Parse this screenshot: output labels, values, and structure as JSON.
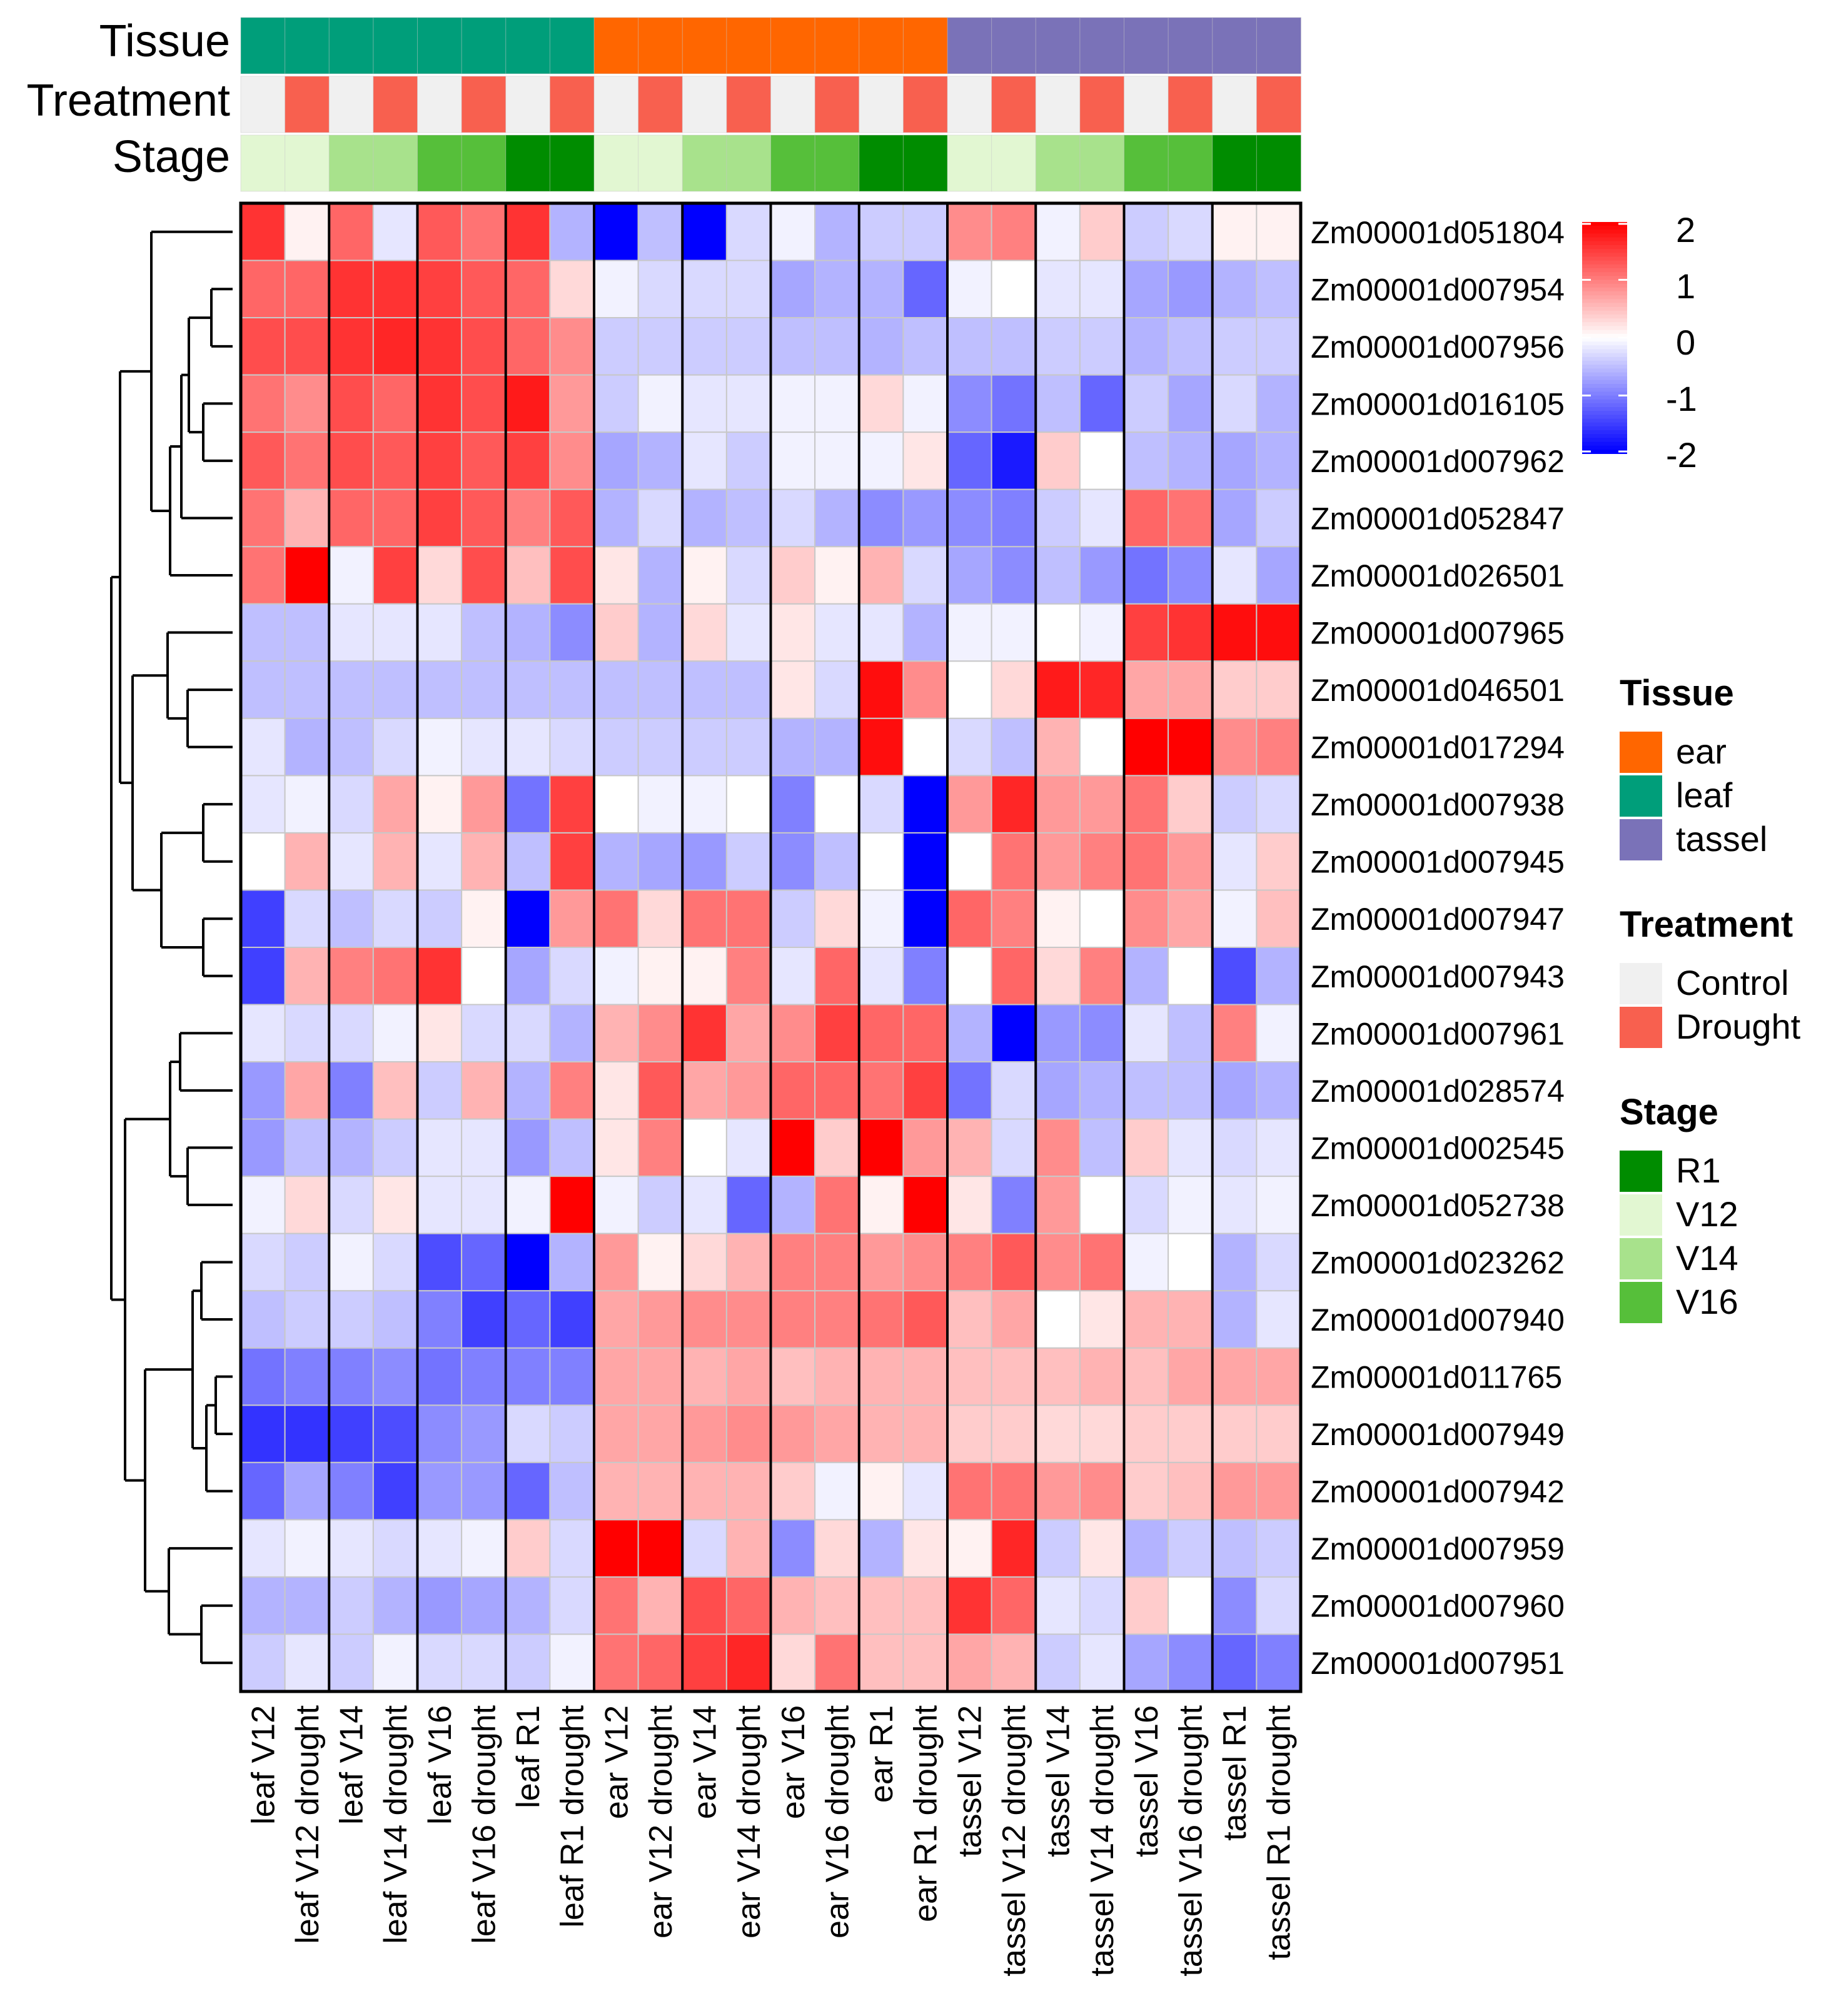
{
  "chart_data": {
    "type": "heatmap",
    "title": "",
    "color_scale": {
      "min": -2,
      "max": 2,
      "ticks": [
        2,
        1,
        0,
        -1,
        -2
      ],
      "low_color": "#0000ff",
      "mid_color": "#ffffff",
      "high_color": "#ff0000"
    },
    "columns": [
      "leaf V12",
      "leaf V12 drought",
      "leaf V14",
      "leaf V14 drought",
      "leaf V16",
      "leaf V16 drought",
      "leaf R1",
      "leaf R1 drought",
      "ear V12",
      "ear V12 drought",
      "ear V14",
      "ear V14 drought",
      "ear V16",
      "ear V16 drought",
      "ear R1",
      "ear R1 drought",
      "tassel V12",
      "tassel V12 drought",
      "tassel V14",
      "tassel V14 drought",
      "tassel V16",
      "tassel V16 drought",
      "tassel R1",
      "tassel R1 drought"
    ],
    "rows": [
      "Zm00001d051804",
      "Zm00001d007954",
      "Zm00001d007956",
      "Zm00001d016105",
      "Zm00001d007962",
      "Zm00001d052847",
      "Zm00001d026501",
      "Zm00001d007965",
      "Zm00001d046501",
      "Zm00001d017294",
      "Zm00001d007938",
      "Zm00001d007945",
      "Zm00001d007947",
      "Zm00001d007943",
      "Zm00001d007961",
      "Zm00001d028574",
      "Zm00001d002545",
      "Zm00001d052738",
      "Zm00001d023262",
      "Zm00001d007940",
      "Zm00001d011765",
      "Zm00001d007949",
      "Zm00001d007942",
      "Zm00001d007959",
      "Zm00001d007960",
      "Zm00001d007951"
    ],
    "values": [
      [
        1.6,
        0.1,
        1.2,
        -0.2,
        1.3,
        1.1,
        1.6,
        -0.6,
        -2.0,
        -0.5,
        -2.0,
        -0.3,
        -0.1,
        -0.6,
        -0.4,
        -0.4,
        0.9,
        1.0,
        -0.1,
        0.4,
        -0.4,
        -0.3,
        0.1,
        0.1
      ],
      [
        1.2,
        1.2,
        1.6,
        1.6,
        1.5,
        1.3,
        1.2,
        0.3,
        -0.1,
        -0.3,
        -0.3,
        -0.3,
        -0.7,
        -0.6,
        -0.6,
        -1.2,
        -0.1,
        0.0,
        -0.2,
        -0.2,
        -0.7,
        -0.8,
        -0.6,
        -0.5
      ],
      [
        1.4,
        1.4,
        1.6,
        1.7,
        1.6,
        1.4,
        1.2,
        0.9,
        -0.4,
        -0.4,
        -0.4,
        -0.4,
        -0.5,
        -0.5,
        -0.6,
        -0.5,
        -0.5,
        -0.5,
        -0.4,
        -0.4,
        -0.6,
        -0.5,
        -0.4,
        -0.4
      ],
      [
        1.1,
        0.9,
        1.4,
        1.2,
        1.6,
        1.4,
        1.8,
        0.8,
        -0.4,
        -0.1,
        -0.2,
        -0.2,
        -0.1,
        -0.1,
        0.3,
        -0.1,
        -0.9,
        -1.1,
        -0.5,
        -1.2,
        -0.4,
        -0.7,
        -0.3,
        -0.6
      ],
      [
        1.3,
        1.1,
        1.4,
        1.3,
        1.5,
        1.3,
        1.5,
        0.9,
        -0.7,
        -0.6,
        -0.2,
        -0.4,
        -0.1,
        -0.1,
        -0.1,
        0.2,
        -1.2,
        -1.8,
        0.4,
        0.0,
        -0.5,
        -0.6,
        -0.7,
        -0.6
      ],
      [
        1.1,
        0.6,
        1.2,
        1.2,
        1.5,
        1.3,
        1.0,
        1.3,
        -0.6,
        -0.3,
        -0.6,
        -0.5,
        -0.3,
        -0.6,
        -0.9,
        -0.8,
        -0.9,
        -1.0,
        -0.4,
        -0.2,
        1.2,
        1.1,
        -0.7,
        -0.4
      ],
      [
        1.1,
        2.0,
        -0.1,
        1.5,
        0.3,
        1.4,
        0.5,
        1.4,
        0.2,
        -0.6,
        0.1,
        -0.3,
        0.4,
        0.1,
        0.6,
        -0.3,
        -0.7,
        -0.9,
        -0.5,
        -0.8,
        -1.1,
        -0.9,
        -0.2,
        -0.7
      ],
      [
        -0.5,
        -0.5,
        -0.2,
        -0.2,
        -0.2,
        -0.5,
        -0.6,
        -0.9,
        0.4,
        -0.6,
        0.3,
        -0.2,
        0.2,
        -0.2,
        -0.2,
        -0.6,
        -0.1,
        -0.1,
        0.0,
        -0.1,
        1.5,
        1.6,
        1.9,
        1.9
      ],
      [
        -0.5,
        -0.5,
        -0.5,
        -0.5,
        -0.5,
        -0.5,
        -0.5,
        -0.5,
        -0.5,
        -0.5,
        -0.5,
        -0.5,
        0.2,
        -0.3,
        1.9,
        0.9,
        0.0,
        0.3,
        1.8,
        1.7,
        0.7,
        0.7,
        0.4,
        0.4
      ],
      [
        -0.2,
        -0.6,
        -0.5,
        -0.3,
        -0.1,
        -0.2,
        -0.2,
        -0.3,
        -0.4,
        -0.4,
        -0.4,
        -0.4,
        -0.6,
        -0.6,
        1.9,
        0.0,
        -0.3,
        -0.5,
        0.6,
        0.0,
        2.0,
        2.0,
        0.9,
        1.0
      ],
      [
        -0.2,
        -0.1,
        -0.3,
        0.7,
        0.1,
        0.8,
        -1.1,
        1.5,
        0.0,
        -0.1,
        -0.1,
        0.0,
        -1.0,
        0.0,
        -0.3,
        -2.0,
        0.8,
        1.7,
        0.8,
        0.8,
        1.1,
        0.4,
        -0.4,
        -0.3
      ],
      [
        0.0,
        0.6,
        -0.2,
        0.6,
        -0.2,
        0.6,
        -0.5,
        1.5,
        -0.6,
        -0.7,
        -0.8,
        -0.4,
        -0.9,
        -0.5,
        0.0,
        -2.0,
        0.0,
        1.1,
        0.8,
        1.0,
        1.1,
        0.8,
        -0.2,
        0.4
      ],
      [
        -1.5,
        -0.3,
        -0.5,
        -0.3,
        -0.4,
        0.1,
        -2.0,
        0.8,
        1.1,
        0.3,
        1.1,
        1.1,
        -0.4,
        0.3,
        -0.1,
        -2.0,
        1.2,
        1.0,
        0.1,
        0.0,
        0.9,
        0.7,
        -0.1,
        0.5
      ],
      [
        -1.5,
        0.6,
        1.0,
        1.1,
        1.6,
        0.0,
        -0.7,
        -0.3,
        -0.1,
        0.1,
        0.1,
        1.0,
        -0.2,
        1.2,
        -0.2,
        -1.0,
        0.0,
        1.2,
        0.3,
        1.0,
        -0.6,
        0.0,
        -1.4,
        -0.6
      ],
      [
        -0.2,
        -0.3,
        -0.3,
        -0.1,
        0.2,
        -0.3,
        -0.3,
        -0.6,
        0.6,
        0.9,
        1.6,
        0.7,
        0.9,
        1.5,
        1.2,
        1.2,
        -0.6,
        -2.0,
        -0.8,
        -0.9,
        -0.2,
        -0.5,
        1.0,
        -0.1
      ],
      [
        -0.8,
        0.7,
        -1.0,
        0.5,
        -0.4,
        0.6,
        -0.6,
        1.0,
        0.2,
        1.3,
        0.7,
        0.8,
        1.2,
        1.2,
        1.1,
        1.5,
        -1.1,
        -0.3,
        -0.7,
        -0.6,
        -0.5,
        -0.5,
        -0.7,
        -0.6
      ],
      [
        -0.8,
        -0.5,
        -0.6,
        -0.4,
        -0.2,
        -0.2,
        -0.8,
        -0.5,
        0.2,
        1.0,
        0.0,
        -0.2,
        2.0,
        0.4,
        2.0,
        0.8,
        0.6,
        -0.3,
        0.9,
        -0.5,
        0.4,
        -0.2,
        -0.3,
        -0.2
      ],
      [
        -0.1,
        0.3,
        -0.3,
        0.2,
        -0.2,
        -0.2,
        -0.1,
        2.0,
        -0.1,
        -0.4,
        -0.2,
        -1.2,
        -0.6,
        1.1,
        0.1,
        2.0,
        0.2,
        -1.0,
        0.8,
        0.0,
        -0.3,
        -0.1,
        -0.2,
        -0.1
      ],
      [
        -0.3,
        -0.4,
        -0.1,
        -0.3,
        -1.4,
        -1.2,
        -2.0,
        -0.6,
        0.8,
        0.1,
        0.3,
        0.6,
        1.0,
        1.0,
        0.8,
        0.9,
        1.0,
        1.3,
        0.9,
        1.1,
        -0.1,
        0.0,
        -0.6,
        -0.3
      ],
      [
        -0.5,
        -0.4,
        -0.4,
        -0.5,
        -1.0,
        -1.5,
        -1.2,
        -1.5,
        0.7,
        0.8,
        0.9,
        0.9,
        1.0,
        1.0,
        1.1,
        1.3,
        0.5,
        0.7,
        0.0,
        0.2,
        0.6,
        0.6,
        -0.6,
        -0.2
      ],
      [
        -1.1,
        -1.0,
        -1.0,
        -0.9,
        -1.1,
        -1.0,
        -1.0,
        -1.0,
        0.7,
        0.7,
        0.6,
        0.7,
        0.5,
        0.6,
        0.6,
        0.6,
        0.5,
        0.5,
        0.5,
        0.6,
        0.5,
        0.7,
        0.7,
        0.7
      ],
      [
        -1.6,
        -1.6,
        -1.5,
        -1.4,
        -0.9,
        -0.8,
        -0.3,
        -0.4,
        0.7,
        0.7,
        0.8,
        0.9,
        0.8,
        0.7,
        0.6,
        0.6,
        0.4,
        0.4,
        0.3,
        0.3,
        0.4,
        0.4,
        0.4,
        0.4
      ],
      [
        -1.2,
        -0.7,
        -1.0,
        -1.5,
        -0.8,
        -0.8,
        -1.2,
        -0.5,
        0.6,
        0.6,
        0.6,
        0.6,
        0.4,
        -0.1,
        0.1,
        -0.2,
        1.1,
        1.1,
        0.8,
        0.9,
        0.4,
        0.5,
        0.8,
        0.8
      ],
      [
        -0.2,
        -0.1,
        -0.2,
        -0.3,
        -0.2,
        -0.1,
        0.4,
        -0.3,
        2.0,
        2.0,
        -0.3,
        0.6,
        -0.9,
        0.3,
        -0.6,
        0.2,
        0.1,
        1.7,
        -0.4,
        0.2,
        -0.6,
        -0.4,
        -0.5,
        -0.4
      ],
      [
        -0.6,
        -0.6,
        -0.4,
        -0.6,
        -0.8,
        -0.7,
        -0.6,
        -0.3,
        1.1,
        0.6,
        1.4,
        1.2,
        0.6,
        0.5,
        0.5,
        0.5,
        1.6,
        1.2,
        -0.2,
        -0.3,
        0.4,
        0.0,
        -0.9,
        -0.3
      ],
      [
        -0.4,
        -0.2,
        -0.4,
        -0.1,
        -0.3,
        -0.3,
        -0.4,
        -0.1,
        1.1,
        1.2,
        1.5,
        1.7,
        0.3,
        1.1,
        0.5,
        0.5,
        0.7,
        0.6,
        -0.4,
        -0.2,
        -0.7,
        -0.9,
        -1.2,
        -1.0
      ]
    ],
    "column_annotations": {
      "Tissue": [
        "leaf",
        "leaf",
        "leaf",
        "leaf",
        "leaf",
        "leaf",
        "leaf",
        "leaf",
        "ear",
        "ear",
        "ear",
        "ear",
        "ear",
        "ear",
        "ear",
        "ear",
        "tassel",
        "tassel",
        "tassel",
        "tassel",
        "tassel",
        "tassel",
        "tassel",
        "tassel"
      ],
      "Treatment": [
        "Control",
        "Drought",
        "Control",
        "Drought",
        "Control",
        "Drought",
        "Control",
        "Drought",
        "Control",
        "Drought",
        "Control",
        "Drought",
        "Control",
        "Drought",
        "Control",
        "Drought",
        "Control",
        "Drought",
        "Control",
        "Drought",
        "Control",
        "Drought",
        "Control",
        "Drought"
      ],
      "Stage": [
        "V12",
        "V12",
        "V14",
        "V14",
        "V16",
        "V16",
        "R1",
        "R1",
        "V12",
        "V12",
        "V14",
        "V14",
        "V16",
        "V16",
        "R1",
        "R1",
        "V12",
        "V12",
        "V14",
        "V14",
        "V16",
        "V16",
        "R1",
        "R1"
      ]
    },
    "annotation_tracks": [
      "Tissue",
      "Treatment",
      "Stage"
    ],
    "legends": [
      {
        "title": "Tissue",
        "items": [
          {
            "label": "ear",
            "color": "#ff6600"
          },
          {
            "label": "leaf",
            "color": "#009e7a"
          },
          {
            "label": "tassel",
            "color": "#7a72b8"
          }
        ]
      },
      {
        "title": "Treatment",
        "items": [
          {
            "label": "Control",
            "color": "#f0f0f0"
          },
          {
            "label": "Drought",
            "color": "#f8604f"
          }
        ]
      },
      {
        "title": "Stage",
        "items": [
          {
            "label": "R1",
            "color": "#008c00"
          },
          {
            "label": "V12",
            "color": "#e2f7d2"
          },
          {
            "label": "V14",
            "color": "#a8e28c"
          },
          {
            "label": "V16",
            "color": "#56bf3a"
          }
        ]
      }
    ],
    "colors": {
      "ear": "#ff6600",
      "leaf": "#009e7a",
      "tassel": "#7a72b8",
      "Control": "#f0f0f0",
      "Drought": "#f8604f",
      "R1": "#008c00",
      "V12": "#e2f7d2",
      "V14": "#a8e28c",
      "V16": "#56bf3a"
    },
    "dendrogram": "row dendrogram on left"
  }
}
